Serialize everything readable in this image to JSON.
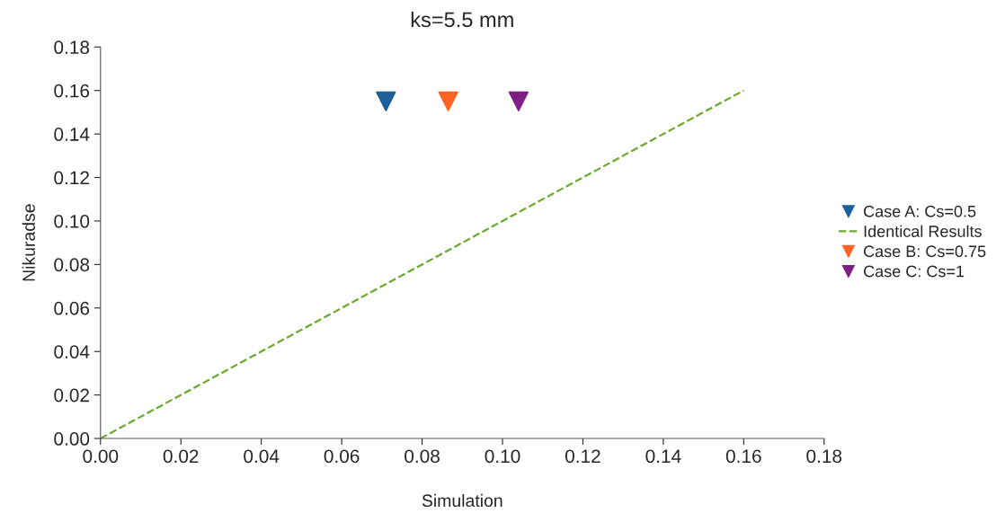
{
  "chart_data": {
    "type": "scatter",
    "title": "ks=5.5 mm",
    "xlabel": "Simulation",
    "ylabel": "Nikuradse",
    "series": [
      {
        "name": "Case A: Cs=0.5",
        "marker": "triangle",
        "color": "#1f5f9a",
        "x": [
          0.071
        ],
        "values": [
          0.155
        ]
      },
      {
        "name": "Identical Results",
        "type": "line",
        "line_style": "dashed",
        "marker": "none",
        "color": "#6aaa30",
        "x": [
          0,
          0.16
        ],
        "values": [
          0,
          0.16
        ]
      },
      {
        "name": "Case B: Cs=0.75",
        "marker": "triangle",
        "color": "#ff6424",
        "x": [
          0.0865
        ],
        "values": [
          0.155
        ]
      },
      {
        "name": "Case C: Cs=1",
        "marker": "triangle",
        "color": "#7e1f86",
        "x": [
          0.104
        ],
        "values": [
          0.155
        ]
      }
    ],
    "xlim": [
      0,
      0.18
    ],
    "xticks": [
      {
        "value": 0,
        "label": "0.00"
      },
      {
        "value": 0.02,
        "label": "0.02"
      },
      {
        "value": 0.04,
        "label": "0.04"
      },
      {
        "value": 0.06,
        "label": "0.06"
      },
      {
        "value": 0.08,
        "label": "0.08"
      },
      {
        "value": 0.1,
        "label": "0.10"
      },
      {
        "value": 0.12,
        "label": "0.12"
      },
      {
        "value": 0.14,
        "label": "0.14"
      },
      {
        "value": 0.16,
        "label": "0.16"
      },
      {
        "value": 0.18,
        "label": "0.18"
      }
    ],
    "ylim": [
      0,
      0.18
    ],
    "yticks": [
      {
        "value": 0,
        "label": "0.00"
      },
      {
        "value": 0.02,
        "label": "0.02"
      },
      {
        "value": 0.04,
        "label": "0.04"
      },
      {
        "value": 0.06,
        "label": "0.06"
      },
      {
        "value": 0.08,
        "label": "0.08"
      },
      {
        "value": 0.1,
        "label": "0.10"
      },
      {
        "value": 0.12,
        "label": "0.12"
      },
      {
        "value": 0.14,
        "label": "0.14"
      },
      {
        "value": 0.16,
        "label": "0.16"
      },
      {
        "value": 0.18,
        "label": "0.18"
      }
    ],
    "grid": false,
    "legend": "right"
  }
}
